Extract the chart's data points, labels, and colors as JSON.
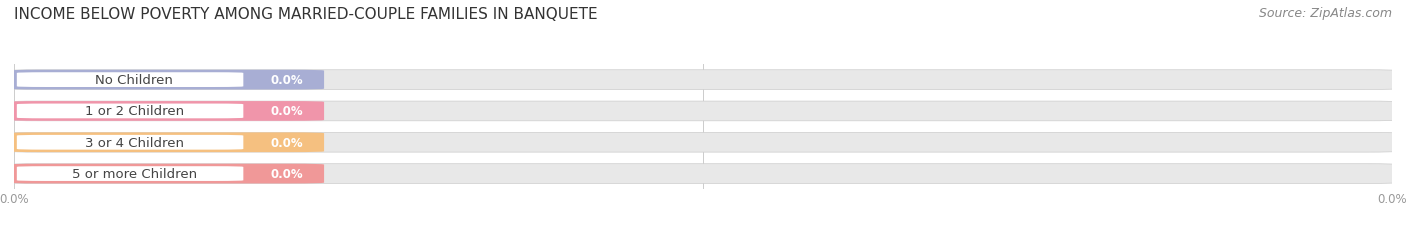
{
  "title": "INCOME BELOW POVERTY AMONG MARRIED-COUPLE FAMILIES IN BANQUETE",
  "source": "Source: ZipAtlas.com",
  "categories": [
    "No Children",
    "1 or 2 Children",
    "3 or 4 Children",
    "5 or more Children"
  ],
  "values": [
    0.0,
    0.0,
    0.0,
    0.0
  ],
  "bar_colors": [
    "#a8aed4",
    "#f095aa",
    "#f5c080",
    "#f09898"
  ],
  "bar_bg_color": "#e8e8e8",
  "value_labels": [
    "0.0%",
    "0.0%",
    "0.0%",
    "0.0%"
  ],
  "title_fontsize": 11,
  "source_fontsize": 9,
  "label_fontsize": 9.5,
  "value_fontsize": 8.5,
  "tick_fontsize": 8.5,
  "fig_bg_color": "#ffffff",
  "tick_color": "#999999",
  "label_color": "#444444",
  "title_color": "#333333"
}
